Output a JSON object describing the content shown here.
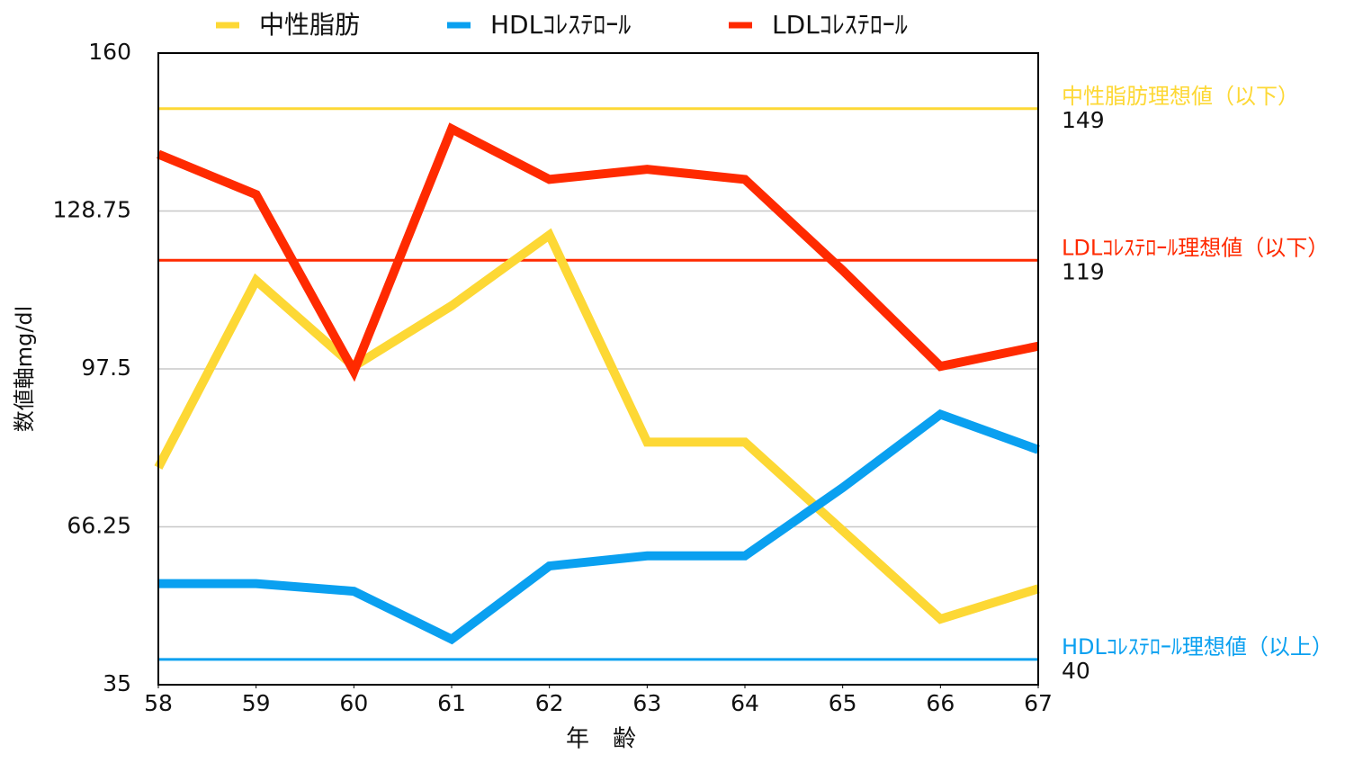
{
  "chart_data": {
    "type": "line",
    "x": [
      58,
      59,
      60,
      61,
      62,
      63,
      64,
      65,
      66,
      67
    ],
    "xlim": [
      58,
      67
    ],
    "xticks": [
      58,
      59,
      60,
      61,
      62,
      63,
      64,
      65,
      66,
      67
    ],
    "ylim": [
      35,
      160
    ],
    "yticks": [
      35,
      66.25,
      97.5,
      128.75,
      160
    ],
    "grid": true,
    "x_label": "年　齢",
    "y_label": "数値軸mg/dl",
    "legend": "top",
    "series": [
      {
        "name": "中性脂肪",
        "color": "#fdd835",
        "values": [
          78,
          115,
          98,
          110,
          124,
          83,
          83,
          65.5,
          48,
          54
        ]
      },
      {
        "name": "HDLｺﾚｽﾃﾛｰﾙ",
        "color": "#0aa0f0",
        "values": [
          55,
          55,
          53.5,
          44,
          58.5,
          60.5,
          60.5,
          74,
          88.5,
          81.5
        ]
      },
      {
        "name": "LDLｺﾚｽﾃﾛｰﾙ",
        "color": "#ff2a00",
        "values": [
          140,
          132,
          97,
          145,
          135,
          137,
          135,
          117,
          98,
          102
        ]
      }
    ],
    "reference_lines": [
      {
        "label": "中性脂肪理想値（以下）",
        "value": 149,
        "color": "#fdd835"
      },
      {
        "label": "LDLｺﾚｽﾃﾛｰﾙ理想値（以下）",
        "value": 119,
        "color": "#ff2a00"
      },
      {
        "label": "HDLｺﾚｽﾃﾛｰﾙ理想値（以上）",
        "value": 40,
        "color": "#0aa0f0"
      }
    ]
  }
}
